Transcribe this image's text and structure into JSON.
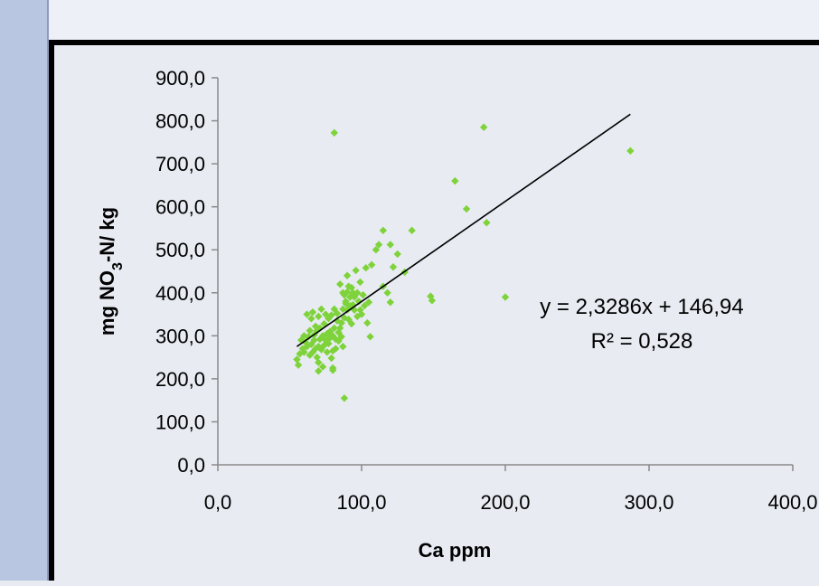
{
  "chart_data": {
    "type": "scatter",
    "title": "",
    "xlabel": "Ca ppm",
    "ylabel_parts": [
      "mg NO",
      "3",
      "-N/ kg"
    ],
    "xlim": [
      0,
      400
    ],
    "ylim": [
      0,
      900
    ],
    "x_ticks": [
      "0,0",
      "100,0",
      "200,0",
      "300,0",
      "400,0"
    ],
    "y_ticks": [
      "0,0",
      "100,0",
      "200,0",
      "300,0",
      "400,0",
      "500,0",
      "600,0",
      "700,0",
      "800,0",
      "900,0"
    ],
    "marker_color": "#7ed33b",
    "trendline": {
      "slope": 2.3286,
      "intercept": 146.94,
      "x_range": [
        55,
        287
      ]
    },
    "equation_text": "y = 2,3286x + 146,94",
    "r2_text": "R² = 0,528",
    "points": [
      [
        55,
        245
      ],
      [
        56,
        232
      ],
      [
        57,
        258
      ],
      [
        58,
        290
      ],
      [
        59,
        270
      ],
      [
        60,
        300
      ],
      [
        60,
        262
      ],
      [
        61,
        285
      ],
      [
        62,
        275
      ],
      [
        62,
        350
      ],
      [
        63,
        298
      ],
      [
        64,
        312
      ],
      [
        64,
        255
      ],
      [
        65,
        340
      ],
      [
        65,
        280
      ],
      [
        66,
        262
      ],
      [
        66,
        355
      ],
      [
        67,
        302
      ],
      [
        67,
        290
      ],
      [
        68,
        322
      ],
      [
        68,
        270
      ],
      [
        69,
        250
      ],
      [
        69,
        312
      ],
      [
        70,
        345
      ],
      [
        70,
        238
      ],
      [
        70,
        275
      ],
      [
        71,
        292
      ],
      [
        71,
        318
      ],
      [
        72,
        362
      ],
      [
        72,
        268
      ],
      [
        73,
        300
      ],
      [
        73,
        228
      ],
      [
        74,
        328
      ],
      [
        74,
        278
      ],
      [
        75,
        350
      ],
      [
        75,
        290
      ],
      [
        76,
        305
      ],
      [
        76,
        262
      ],
      [
        77,
        282
      ],
      [
        77,
        340
      ],
      [
        78,
        295
      ],
      [
        78,
        310
      ],
      [
        79,
        348
      ],
      [
        79,
        248
      ],
      [
        80,
        265
      ],
      [
        80,
        225
      ],
      [
        80,
        300
      ],
      [
        81,
        318
      ],
      [
        81,
        362
      ],
      [
        82,
        270
      ],
      [
        82,
        292
      ],
      [
        83,
        352
      ],
      [
        83,
        335
      ],
      [
        84,
        308
      ],
      [
        84,
        288
      ],
      [
        85,
        420
      ],
      [
        85,
        318
      ],
      [
        86,
        298
      ],
      [
        86,
        330
      ],
      [
        87,
        400
      ],
      [
        87,
        362
      ],
      [
        87,
        275
      ],
      [
        88,
        395
      ],
      [
        88,
        342
      ],
      [
        89,
        380
      ],
      [
        89,
        375
      ],
      [
        90,
        440
      ],
      [
        90,
        402
      ],
      [
        90,
        360
      ],
      [
        91,
        415
      ],
      [
        91,
        338
      ],
      [
        92,
        390
      ],
      [
        92,
        370
      ],
      [
        93,
        412
      ],
      [
        93,
        328
      ],
      [
        94,
        400
      ],
      [
        94,
        372
      ],
      [
        95,
        360
      ],
      [
        95,
        390
      ],
      [
        96,
        452
      ],
      [
        97,
        400
      ],
      [
        97,
        345
      ],
      [
        98,
        380
      ],
      [
        99,
        425
      ],
      [
        99,
        360
      ],
      [
        100,
        350
      ],
      [
        101,
        395
      ],
      [
        102,
        370
      ],
      [
        103,
        458
      ],
      [
        104,
        330
      ],
      [
        105,
        378
      ],
      [
        106,
        298
      ],
      [
        107,
        465
      ],
      [
        110,
        500
      ],
      [
        112,
        512
      ],
      [
        115,
        545
      ],
      [
        115,
        415
      ],
      [
        118,
        400
      ],
      [
        120,
        378
      ],
      [
        120,
        512
      ],
      [
        122,
        460
      ],
      [
        125,
        490
      ],
      [
        130,
        448
      ],
      [
        135,
        545
      ],
      [
        148,
        392
      ],
      [
        149,
        382
      ],
      [
        165,
        660
      ],
      [
        173,
        595
      ],
      [
        185,
        785
      ],
      [
        187,
        563
      ],
      [
        287,
        730
      ],
      [
        81,
        772
      ],
      [
        88,
        155
      ],
      [
        70,
        218
      ],
      [
        80,
        220
      ],
      [
        200,
        390
      ]
    ]
  }
}
